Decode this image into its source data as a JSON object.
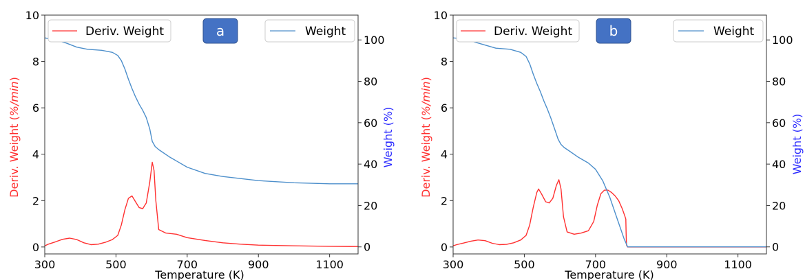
{
  "chart_data": [
    {
      "type": "line",
      "badge": "a",
      "xlabel": "Temperature (K)",
      "ylabel": "Deriv. Weight (%/min)",
      "ylabel_main": "Deriv. Weight (",
      "ylabel_unit": "%/min",
      "ylabel_close": ")",
      "y2label": "Weight (%)",
      "xlim": [
        300,
        1180
      ],
      "ylim": [
        -0.3,
        10
      ],
      "y2lim": [
        -3.4,
        112
      ],
      "x_ticks": [
        300,
        500,
        700,
        900,
        1100
      ],
      "y_ticks": [
        0,
        2,
        4,
        6,
        8,
        10
      ],
      "y2_ticks": [
        0,
        20,
        40,
        60,
        80,
        100
      ],
      "series": [
        {
          "name": "Deriv. Weight",
          "axis": "left",
          "color": "#ff3030",
          "x": [
            300,
            310,
            330,
            350,
            370,
            390,
            410,
            430,
            450,
            470,
            490,
            505,
            515,
            525,
            535,
            545,
            555,
            565,
            575,
            585,
            595,
            602,
            607,
            612,
            620,
            640,
            670,
            700,
            750,
            800,
            850,
            900,
            1000,
            1100,
            1180
          ],
          "y": [
            0.05,
            0.12,
            0.22,
            0.33,
            0.38,
            0.32,
            0.18,
            0.1,
            0.12,
            0.2,
            0.32,
            0.5,
            0.95,
            1.6,
            2.1,
            2.2,
            1.95,
            1.7,
            1.65,
            1.9,
            2.8,
            3.65,
            3.3,
            2.0,
            0.75,
            0.6,
            0.55,
            0.4,
            0.28,
            0.18,
            0.12,
            0.08,
            0.05,
            0.03,
            0.02
          ]
        },
        {
          "name": "Weight",
          "axis": "right",
          "color": "#4d8fcb",
          "x": [
            300,
            330,
            360,
            390,
            420,
            460,
            490,
            505,
            515,
            525,
            535,
            545,
            555,
            565,
            575,
            585,
            595,
            602,
            610,
            620,
            650,
            700,
            750,
            800,
            900,
            1000,
            1100,
            1180
          ],
          "y": [
            101,
            100,
            98.5,
            96.5,
            95.5,
            95,
            94,
            92.5,
            90,
            86,
            81,
            76.5,
            72.5,
            69,
            66,
            62.5,
            57,
            51,
            48.5,
            47,
            43.5,
            38.5,
            35.5,
            34,
            32,
            31,
            30.5,
            30.5
          ]
        }
      ],
      "legend_left": {
        "label": "Deriv. Weight",
        "position": "upper-left"
      },
      "legend_right": {
        "label": "Weight",
        "position": "upper-right"
      }
    },
    {
      "type": "line",
      "badge": "b",
      "xlabel": "Temperature (K)",
      "ylabel": "Deriv. Weight (%/min)",
      "ylabel_main": "Deriv. Weight (",
      "ylabel_unit": "%/min",
      "ylabel_close": ")",
      "y2label": "Weight (%)",
      "xlim": [
        300,
        1180
      ],
      "ylim": [
        -0.3,
        10
      ],
      "y2lim": [
        -3.4,
        112
      ],
      "x_ticks": [
        300,
        500,
        700,
        900,
        1100
      ],
      "y_ticks": [
        0,
        2,
        4,
        6,
        8,
        10
      ],
      "y2_ticks": [
        0,
        20,
        40,
        60,
        80,
        100
      ],
      "series": [
        {
          "name": "Deriv. Weight",
          "axis": "left",
          "color": "#ff3030",
          "x": [
            300,
            310,
            330,
            350,
            370,
            390,
            410,
            430,
            450,
            470,
            490,
            505,
            515,
            525,
            535,
            540,
            548,
            560,
            570,
            580,
            590,
            597,
            603,
            610,
            620,
            640,
            660,
            680,
            695,
            705,
            715,
            725,
            735,
            745,
            755,
            765,
            775,
            782,
            785,
            786,
            787,
            790,
            900,
            1000,
            1100,
            1180
          ],
          "y": [
            0.05,
            0.1,
            0.17,
            0.25,
            0.3,
            0.27,
            0.16,
            0.1,
            0.11,
            0.18,
            0.3,
            0.5,
            0.95,
            1.7,
            2.35,
            2.5,
            2.3,
            1.95,
            1.9,
            2.1,
            2.65,
            2.9,
            2.5,
            1.3,
            0.65,
            0.55,
            0.6,
            0.7,
            1.1,
            1.8,
            2.3,
            2.45,
            2.45,
            2.35,
            2.2,
            2.0,
            1.65,
            1.35,
            1.2,
            0.5,
            0.08,
            0.0,
            0.0,
            0.0,
            0.0,
            0.0
          ]
        },
        {
          "name": "Weight",
          "axis": "right",
          "color": "#4d8fcb",
          "x": [
            300,
            330,
            360,
            390,
            420,
            460,
            490,
            505,
            515,
            525,
            535,
            545,
            555,
            565,
            575,
            585,
            595,
            603,
            612,
            625,
            650,
            680,
            700,
            720,
            740,
            760,
            780,
            790,
            800,
            900,
            1000,
            1100,
            1180
          ],
          "y": [
            101,
            100.5,
            99,
            97.5,
            96,
            95.5,
            94,
            92,
            88.5,
            83.5,
            79,
            75,
            70.5,
            66.5,
            62,
            57,
            52,
            49.5,
            48,
            46.5,
            43.5,
            40.5,
            37.5,
            32,
            24,
            14,
            4,
            0,
            0,
            0,
            0,
            0,
            0
          ]
        }
      ],
      "legend_left": {
        "label": "Deriv. Weight",
        "position": "upper-left"
      },
      "legend_right": {
        "label": "Weight",
        "position": "upper-right"
      }
    }
  ],
  "colors": {
    "deriv_axis_label": "#ff3030",
    "weight_axis_label": "#2a2aff",
    "badge_fill": "#4472c4",
    "badge_stroke": "#2f528f"
  }
}
